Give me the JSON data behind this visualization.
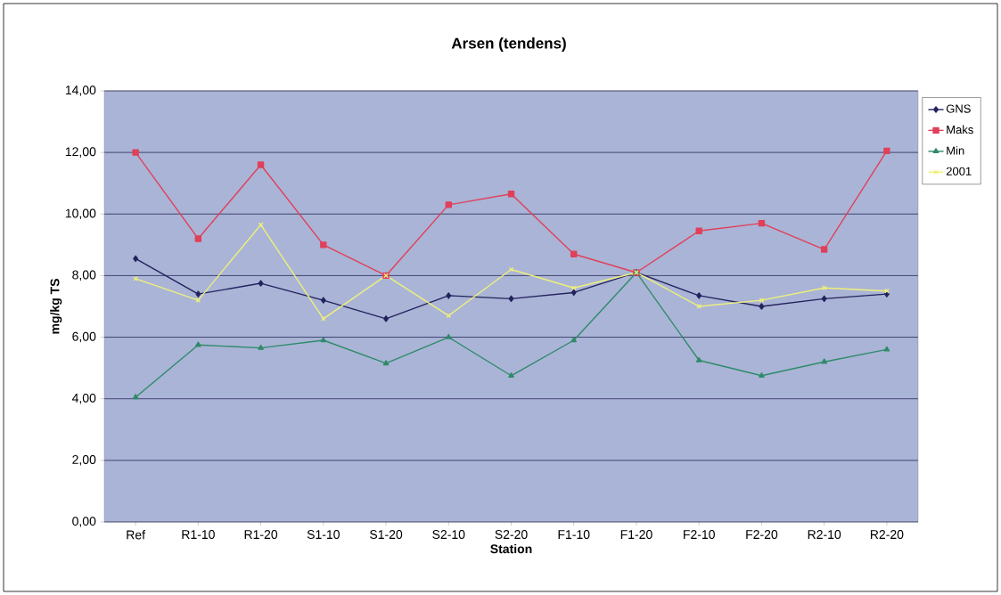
{
  "chart_data": {
    "type": "line",
    "title": "Arsen (tendens)",
    "xlabel": "Station",
    "ylabel": "mg/kg TS",
    "categories": [
      "Ref",
      "R1-10",
      "R1-20",
      "S1-10",
      "S1-20",
      "S2-10",
      "S2-20",
      "F1-10",
      "F1-20",
      "F2-10",
      "F2-20",
      "R2-10",
      "R2-20"
    ],
    "series": [
      {
        "name": "GNS",
        "color": "#23235e",
        "marker": "diamond",
        "values": [
          8.55,
          7.4,
          7.75,
          7.2,
          6.6,
          7.35,
          7.25,
          7.45,
          8.1,
          7.35,
          7.0,
          7.25,
          7.4
        ]
      },
      {
        "name": "Maks",
        "color": "#e0405a",
        "marker": "square",
        "values": [
          12.0,
          9.2,
          11.6,
          9.0,
          8.0,
          10.3,
          10.65,
          8.7,
          8.1,
          9.45,
          9.7,
          8.85,
          12.05
        ]
      },
      {
        "name": "Min",
        "color": "#2e8b6a",
        "marker": "triangle",
        "values": [
          4.05,
          5.75,
          5.65,
          5.9,
          5.15,
          6.0,
          4.75,
          5.9,
          8.1,
          5.25,
          4.75,
          5.2,
          5.6
        ]
      },
      {
        "name": "2001",
        "color": "#eef07a",
        "marker": "cross",
        "values": [
          7.9,
          7.2,
          9.65,
          6.6,
          8.0,
          6.7,
          8.2,
          7.6,
          8.1,
          7.0,
          7.2,
          7.6,
          7.5
        ]
      }
    ],
    "ylim": [
      0,
      14
    ],
    "yticks": [
      {
        "value": 0,
        "label": "0,00"
      },
      {
        "value": 2,
        "label": "2,00"
      },
      {
        "value": 4,
        "label": "4,00"
      },
      {
        "value": 6,
        "label": "6,00"
      },
      {
        "value": 8,
        "label": "8,00"
      },
      {
        "value": 10,
        "label": "10,00"
      },
      {
        "value": 12,
        "label": "12,00"
      },
      {
        "value": 14,
        "label": "14,00"
      }
    ],
    "grid": "y",
    "legend": "right",
    "line_style": "solid"
  }
}
